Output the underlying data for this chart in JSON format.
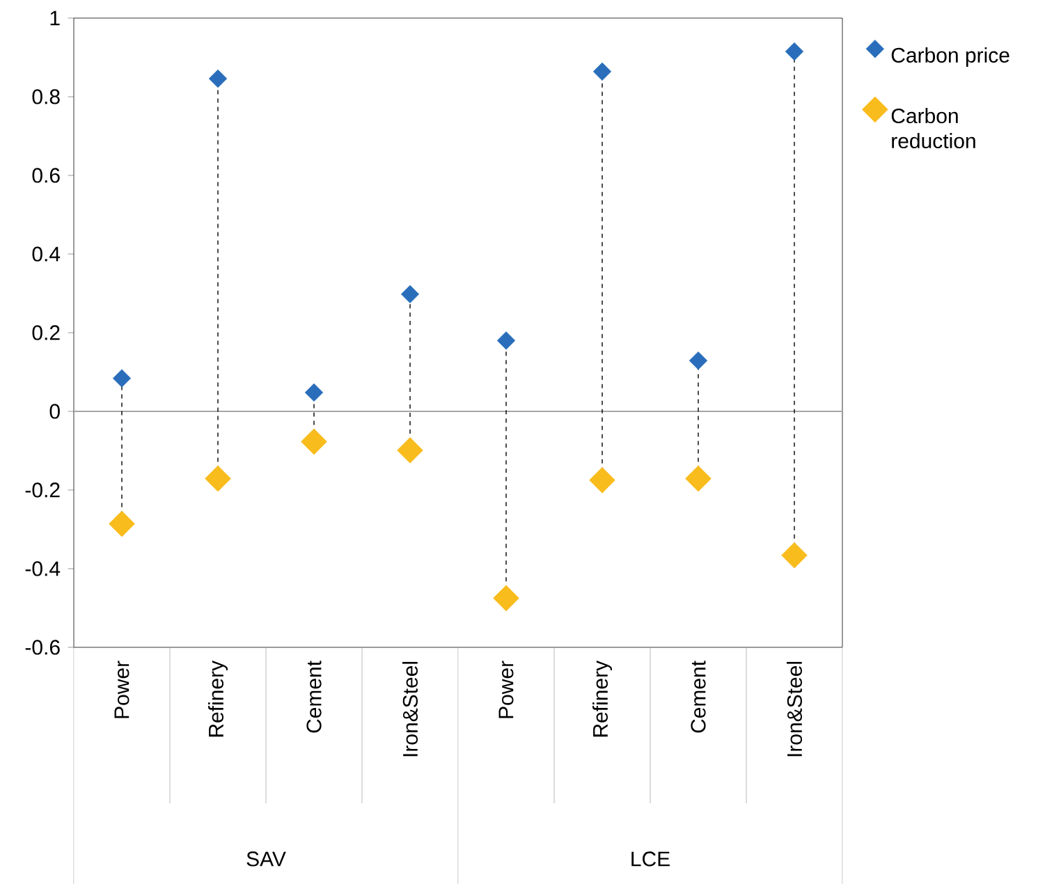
{
  "chart_data": {
    "type": "scatter",
    "categories": [
      "Power",
      "Refinery",
      "Cement",
      "Iron&Steel",
      "Power",
      "Refinery",
      "Cement",
      "Iron&Steel"
    ],
    "series": [
      {
        "name": "Carbon price",
        "color": "#2a6ebb",
        "values": [
          0.084,
          0.846,
          0.048,
          0.298,
          0.18,
          0.864,
          0.129,
          0.915
        ]
      },
      {
        "name": "Carbon reduction",
        "color": "#f9bc1d",
        "values": [
          -0.286,
          -0.171,
          -0.077,
          -0.099,
          -0.475,
          -0.175,
          -0.171,
          -0.366
        ]
      }
    ],
    "annotations": [
      "SAV",
      "LCE"
    ],
    "ylim": [
      -0.6,
      1
    ],
    "yticks": [
      -0.6,
      -0.4,
      -0.2,
      0,
      0.2,
      0.4,
      0.6,
      0.8,
      1
    ],
    "ref_lines": [
      {
        "axis": "y",
        "value": 0,
        "color": "#a6a6a6"
      }
    ],
    "marker": "diamond",
    "line_style": "dashed",
    "legend": "right",
    "grid": false
  }
}
